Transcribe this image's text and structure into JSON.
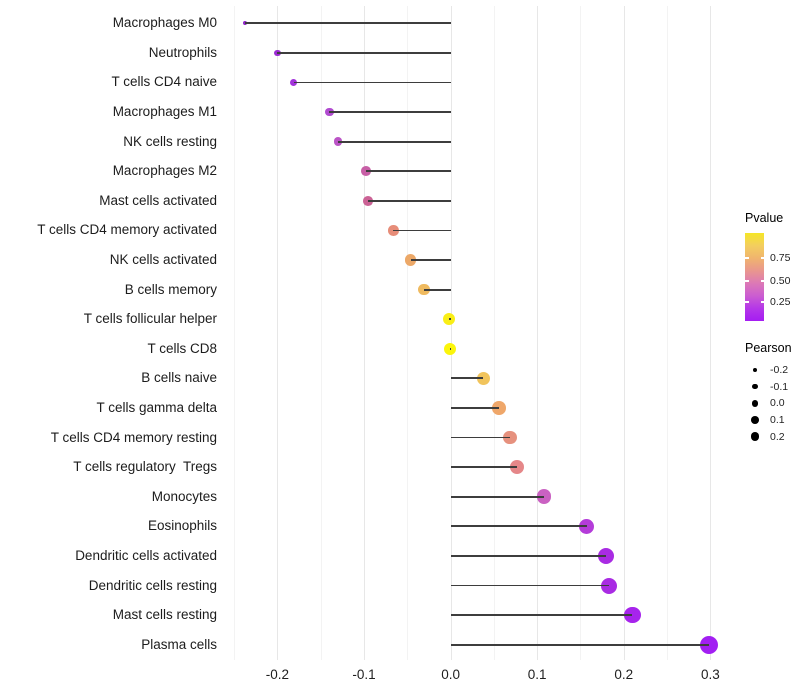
{
  "chart_data": {
    "type": "lollipop",
    "orientation": "horizontal",
    "title": "",
    "xlabel": "",
    "ylabel": "",
    "xlim": [
      -0.264,
      0.325
    ],
    "x_major_ticks": [
      -0.2,
      -0.1,
      0,
      0.1,
      0.2,
      0.3
    ],
    "x_tick_labels": [
      "-0.2",
      "-0.1",
      "0.0",
      "0.1",
      "0.2",
      "0.3"
    ],
    "x_minor_ticks": [
      -0.25,
      -0.15,
      -0.05,
      0.05,
      0.15,
      0.25
    ],
    "grid": "vertical-only",
    "points": [
      {
        "label": "Macrophages M0",
        "pearson": -0.237,
        "color": "#8F25C8",
        "radius": 2.1
      },
      {
        "label": "Neutrophils",
        "pearson": -0.2,
        "color": "#9C2CD3",
        "radius": 3.1
      },
      {
        "label": "T cells CD4 naive",
        "pearson": -0.181,
        "color": "#A233DB",
        "radius": 3.5
      },
      {
        "label": "Macrophages M1",
        "pearson": -0.14,
        "color": "#B14BD0",
        "radius": 4.3
      },
      {
        "label": "NK cells resting",
        "pearson": -0.13,
        "color": "#BB54C6",
        "radius": 4.4
      },
      {
        "label": "Macrophages M2",
        "pearson": -0.098,
        "color": "#C75FA6",
        "radius": 4.9
      },
      {
        "label": "Mast cells activated",
        "pearson": -0.095,
        "color": "#CB6295",
        "radius": 4.9
      },
      {
        "label": "T cells CD4 memory activated",
        "pearson": -0.066,
        "color": "#E78D79",
        "radius": 5.3
      },
      {
        "label": "NK cells activated",
        "pearson": -0.046,
        "color": "#ECA868",
        "radius": 5.6
      },
      {
        "label": "B cells memory",
        "pearson": -0.031,
        "color": "#EFBA5F",
        "radius": 5.8
      },
      {
        "label": "T cells follicular helper",
        "pearson": -0.002,
        "color": "#F9EE16",
        "radius": 6.2
      },
      {
        "label": "T cells CD8",
        "pearson": -0.001,
        "color": "#FBF50B",
        "radius": 6.2
      },
      {
        "label": "B cells naive",
        "pearson": 0.038,
        "color": "#F1C45C",
        "radius": 6.6
      },
      {
        "label": "T cells gamma delta",
        "pearson": 0.056,
        "color": "#EFA76A",
        "radius": 6.8
      },
      {
        "label": "T cells CD4 memory resting",
        "pearson": 0.069,
        "color": "#E6917E",
        "radius": 6.9
      },
      {
        "label": "T cells regulatory  Tregs",
        "pearson": 0.077,
        "color": "#E58789",
        "radius": 7.0
      },
      {
        "label": "Monocytes",
        "pearson": 0.108,
        "color": "#CA61C2",
        "radius": 7.3
      },
      {
        "label": "Eosinophils",
        "pearson": 0.157,
        "color": "#B43CD9",
        "radius": 7.8
      },
      {
        "label": "Dendritic cells activated",
        "pearson": 0.18,
        "color": "#A92BE3",
        "radius": 8.0
      },
      {
        "label": "Dendritic cells resting",
        "pearson": 0.183,
        "color": "#A92BE3",
        "radius": 8.0
      },
      {
        "label": "Mast cells resting",
        "pearson": 0.21,
        "color": "#A724EC",
        "radius": 8.3
      },
      {
        "label": "Plasma cells",
        "pearson": 0.298,
        "color": "#A21FF2",
        "radius": 9.0
      }
    ],
    "legend": {
      "pvalue": {
        "title": "Pvalue",
        "gradient_top_to_bottom": [
          "#F5E626",
          "#F3CE5F",
          "#F0B46E",
          "#E9968E",
          "#DC79B6",
          "#CB5DD1",
          "#B437E8",
          "#A51DF2"
        ],
        "ticks": [
          {
            "label": "0.75",
            "pos": 0.284
          },
          {
            "label": "0.50",
            "pos": 0.545
          },
          {
            "label": "0.25",
            "pos": 0.784
          }
        ]
      },
      "pearson": {
        "title": "Pearson",
        "entries": [
          {
            "label": "-0.2",
            "radius": 2.2
          },
          {
            "label": "-0.1",
            "radius": 2.8
          },
          {
            "label": "0.0",
            "radius": 3.4
          },
          {
            "label": "0.1",
            "radius": 3.9
          },
          {
            "label": "0.2",
            "radius": 4.4
          }
        ]
      }
    },
    "colors": {
      "background": "#FFFFFF",
      "stem": "#3D3D3D",
      "grid_major": "#E7E7E7",
      "grid_minor": "#F3F3F3",
      "axis_text": "#1F1F1F",
      "legend_dot": "#000000"
    }
  }
}
